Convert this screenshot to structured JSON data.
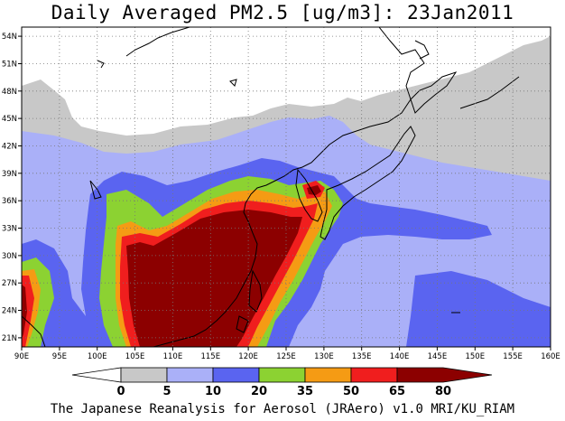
{
  "title": "Daily Averaged PM2.5 [ug/m3]: 23Jan2011",
  "credit": "The Japanese Reanalysis for Aerosol (JRAero) v1.0 MRI/KU_RIAM",
  "map": {
    "lon_ticks": [
      "90E",
      "95E",
      "100E",
      "105E",
      "110E",
      "115E",
      "120E",
      "125E",
      "130E",
      "135E",
      "140E",
      "145E",
      "150E",
      "155E",
      "160E"
    ],
    "lat_ticks": [
      "54N",
      "51N",
      "48N",
      "45N",
      "42N",
      "39N",
      "36N",
      "33N",
      "30N",
      "27N",
      "24N",
      "21N"
    ],
    "lon_range": [
      90,
      160
    ],
    "lat_range": [
      20,
      55
    ]
  },
  "colorbar": {
    "labels": [
      "0",
      "5",
      "10",
      "20",
      "35",
      "50",
      "65",
      "80"
    ],
    "colors": [
      "#ffffff",
      "#c8c8c8",
      "#aab0f8",
      "#5a64f0",
      "#8cd232",
      "#f59b14",
      "#f01e1e",
      "#8c0000"
    ]
  }
}
